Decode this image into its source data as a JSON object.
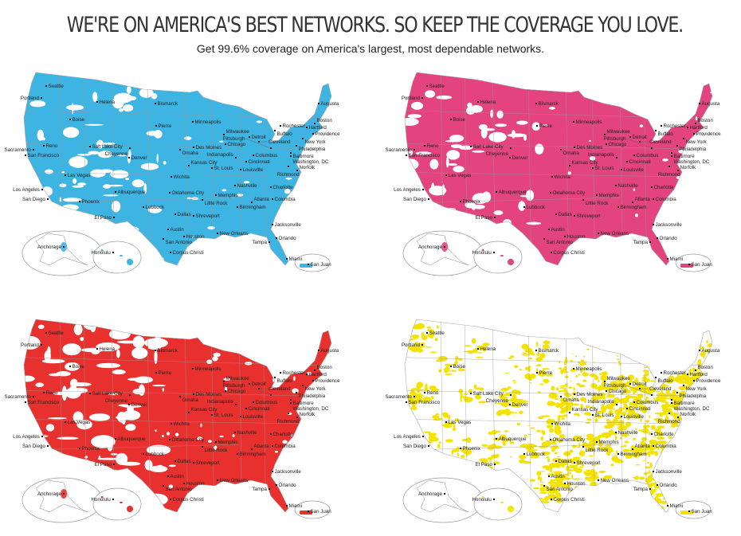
{
  "header": {
    "title": "WE'RE ON AMERICA'S BEST NETWORKS. SO KEEP THE COVERAGE YOU LOVE.",
    "subtitle": "Get 99.6% coverage on America's largest, most dependable networks."
  },
  "maps": [
    {
      "coverage_color": "#3db4e2",
      "coverage_style": "dense"
    },
    {
      "coverage_color": "#e3447f",
      "coverage_style": "dense"
    },
    {
      "coverage_color": "#e8312e",
      "coverage_style": "medium"
    },
    {
      "coverage_color": "#f4e300",
      "coverage_style": "sparse"
    }
  ],
  "cities": [
    "Seattle",
    "Portland",
    "Helena",
    "Bismarck",
    "Boise",
    "Minneapolis",
    "Pierre",
    "Sacramento",
    "Reno",
    "Salt Lake City",
    "Cheyenne",
    "San Francisco",
    "Omaha",
    "Des Moines",
    "Chicago",
    "Milwaukee",
    "Detroit",
    "Cleveland",
    "Rochester",
    "Buffalo",
    "Hartford",
    "Boston",
    "Providence",
    "New York",
    "Philadelphia",
    "Baltimore",
    "Washington, DC",
    "Denver",
    "Las Vegas",
    "Kansas City",
    "St. Louis",
    "Indianapolis",
    "Cincinnati",
    "Columbus",
    "Pittsburgh",
    "Louisville",
    "Richmond",
    "Norfolk",
    "Wichita",
    "Oklahoma City",
    "Nashville",
    "Charlotte",
    "Memphis",
    "Los Angeles",
    "San Diego",
    "Albuquerque",
    "Phoenix",
    "Little Rock",
    "Birmingham",
    "Atlanta",
    "Columbia",
    "Lubbock",
    "Dallas",
    "Shreveport",
    "El Paso",
    "Austin",
    "Houston",
    "New Orleans",
    "Jacksonville",
    "San Antonio",
    "Tampa",
    "Orlando",
    "Corpus Christi",
    "Miami",
    "Augusta"
  ],
  "insets": {
    "alaska_city": "Anchorage",
    "hawaii_city": "Honolulu",
    "puerto_rico_city": "San Juan"
  }
}
